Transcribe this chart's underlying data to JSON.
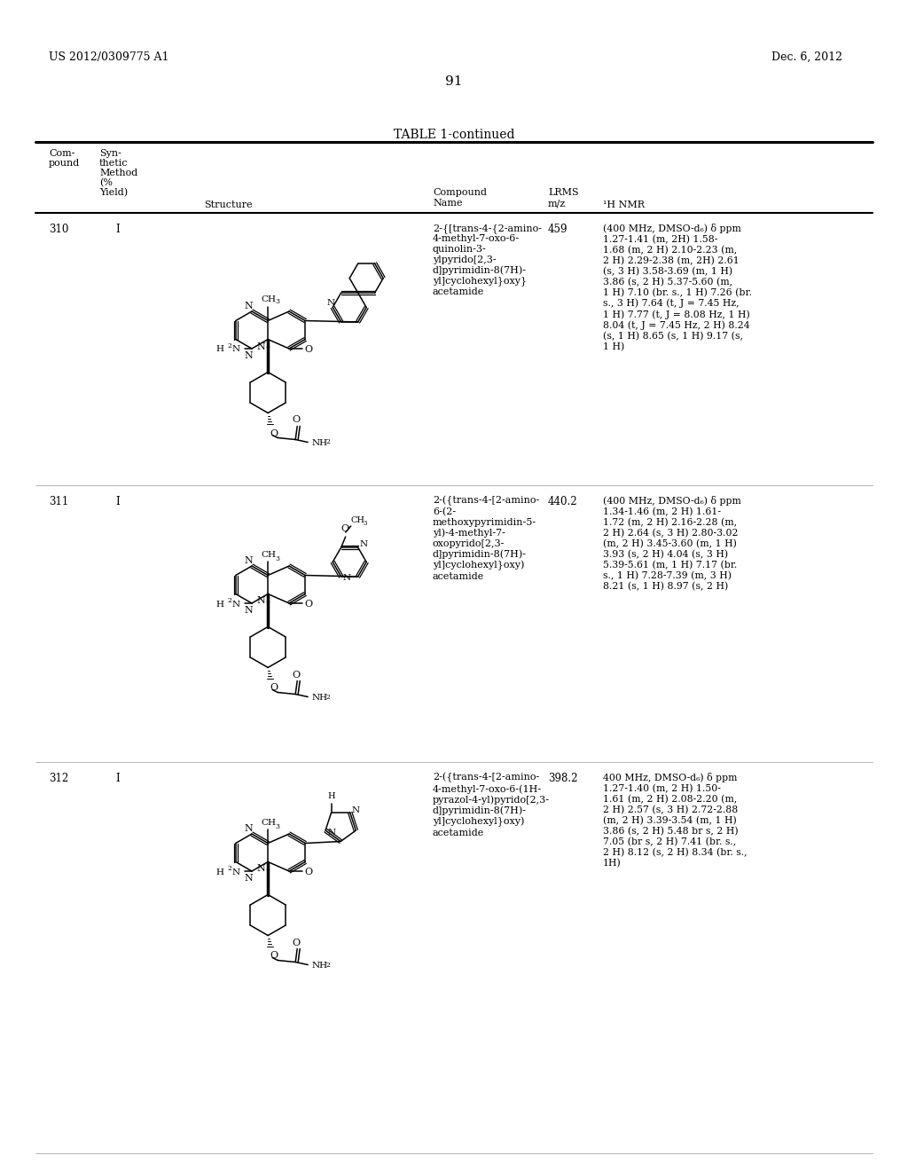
{
  "page_header_left": "US 2012/0309775 A1",
  "page_header_right": "Dec. 6, 2012",
  "page_number": "91",
  "table_title": "TABLE 1-continued",
  "rows": [
    {
      "compound": "310",
      "method": "I",
      "compound_name": "2-{[trans-4-{2-amino-\n4-methyl-7-oxo-6-\nquinolin-3-\nylpyrido[2,3-\nd]pyrimidin-8(7H)-\nyl]cyclohexyl}oxy}\nacetamide",
      "lrms": "459",
      "nmr": "(400 MHz, DMSO-d₆) δ ppm\n1.27-1.41 (m, 2H) 1.58-\n1.68 (m, 2 H) 2.10-2.23 (m,\n2 H) 2.29-2.38 (m, 2H) 2.61\n(s, 3 H) 3.58-3.69 (m, 1 H)\n3.86 (s, 2 H) 5.37-5.60 (m,\n1 H) 7.10 (br. s., 1 H) 7.26 (br.\ns., 3 H) 7.64 (t, J = 7.45 Hz,\n1 H) 7.77 (t, J = 8.08 Hz, 1 H)\n8.04 (t, J = 7.45 Hz, 2 H) 8.24\n(s, 1 H) 8.65 (s, 1 H) 9.17 (s,\n1 H)"
    },
    {
      "compound": "311",
      "method": "I",
      "compound_name": "2-({trans-4-[2-amino-\n6-(2-\nmethoxypyrimidin-5-\nyl)-4-methyl-7-\noxopyrido[2,3-\nd]pyrimidin-8(7H)-\nyl]cyclohexyl}oxy)\nacetamide",
      "lrms": "440.2",
      "nmr": "(400 MHz, DMSO-d₆) δ ppm\n1.34-1.46 (m, 2 H) 1.61-\n1.72 (m, 2 H) 2.16-2.28 (m,\n2 H) 2.64 (s, 3 H) 2.80-3.02\n(m, 2 H) 3.45-3.60 (m, 1 H)\n3.93 (s, 2 H) 4.04 (s, 3 H)\n5.39-5.61 (m, 1 H) 7.17 (br.\ns., 1 H) 7.28-7.39 (m, 3 H)\n8.21 (s, 1 H) 8.97 (s, 2 H)"
    },
    {
      "compound": "312",
      "method": "I",
      "compound_name": "2-({trans-4-[2-amino-\n4-methyl-7-oxo-6-(1H-\npyrazol-4-yl)pyrido[2,3-\nd]pyrimidin-8(7H)-\nyl]cyclohexyl}oxy)\nacetamide",
      "lrms": "398.2",
      "nmr": "400 MHz, DMSO-d₆) δ ppm\n1.27-1.40 (m, 2 H) 1.50-\n1.61 (m, 2 H) 2.08-2.20 (m,\n2 H) 2.57 (s, 3 H) 2.72-2.88\n(m, 2 H) 3.39-3.54 (m, 1 H)\n3.86 (s, 2 H) 5.48 br s, 2 H)\n7.05 (br s, 2 H) 7.41 (br. s.,\n2 H) 8.12 (s, 2 H) 8.34 (br. s.,\n1H)"
    }
  ],
  "background_color": "#ffffff",
  "text_color": "#000000"
}
